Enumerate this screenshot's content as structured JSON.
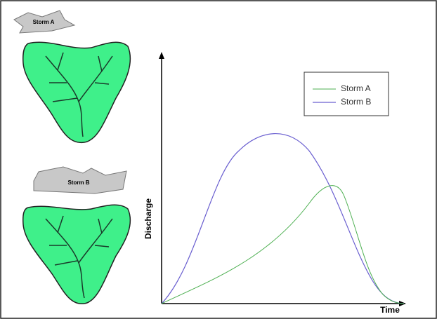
{
  "storms": [
    {
      "label": "Storm A"
    },
    {
      "label": "Storm B"
    }
  ],
  "chart": {
    "x_label": "Time",
    "y_label": "Discharge",
    "legend": [
      "Storm A",
      "Storm B"
    ]
  }
}
